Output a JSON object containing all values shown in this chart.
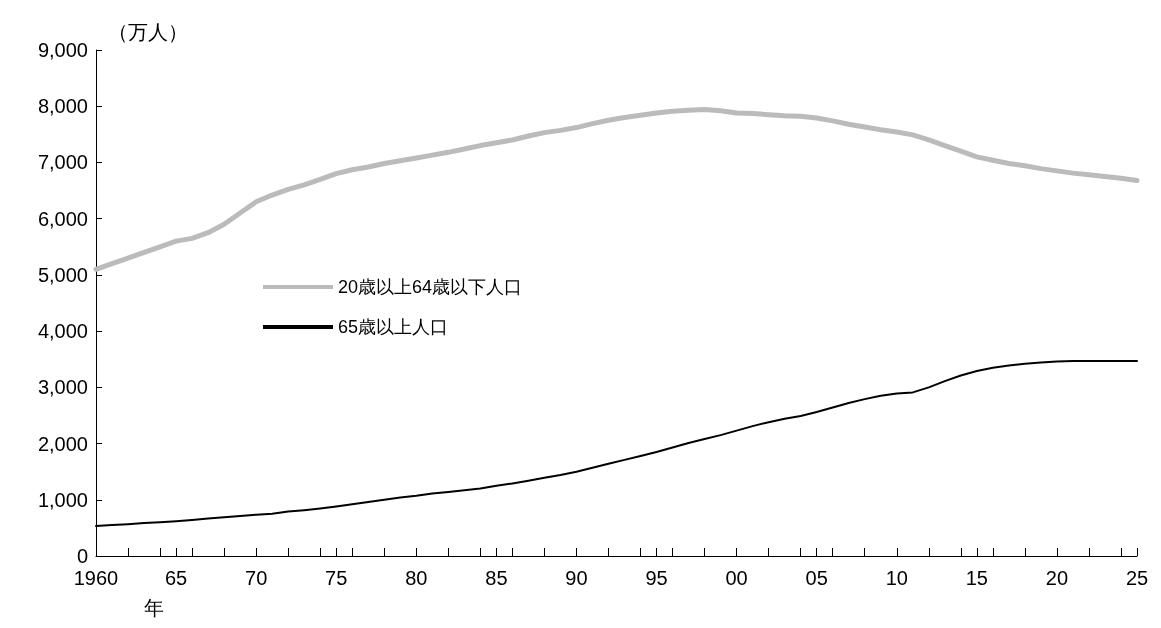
{
  "chart_data": {
    "type": "line",
    "xlabel": "年",
    "ylabel": "（万人）",
    "x": [
      1960,
      1961,
      1962,
      1963,
      1964,
      1965,
      1966,
      1967,
      1968,
      1969,
      1970,
      1971,
      1972,
      1973,
      1974,
      1975,
      1976,
      1977,
      1978,
      1979,
      1980,
      1981,
      1982,
      1983,
      1984,
      1985,
      1986,
      1987,
      1988,
      1989,
      1990,
      1991,
      1992,
      1993,
      1994,
      1995,
      1996,
      1997,
      1998,
      1999,
      2000,
      2001,
      2002,
      2003,
      2004,
      2005,
      2006,
      2007,
      2008,
      2009,
      2010,
      2011,
      2012,
      2013,
      2014,
      2015,
      2016,
      2017,
      2018,
      2019,
      2020,
      2021,
      2022,
      2023,
      2024,
      2025
    ],
    "series": [
      {
        "name": "20歳以上64歳以下人口",
        "color": "#bbbbbb",
        "values": [
          5100,
          5200,
          5300,
          5400,
          5500,
          5600,
          5650,
          5750,
          5900,
          6100,
          6300,
          6420,
          6520,
          6600,
          6700,
          6800,
          6870,
          6920,
          6980,
          7030,
          7080,
          7130,
          7180,
          7240,
          7300,
          7350,
          7400,
          7470,
          7530,
          7570,
          7620,
          7690,
          7750,
          7800,
          7840,
          7880,
          7910,
          7930,
          7940,
          7920,
          7880,
          7870,
          7850,
          7830,
          7820,
          7790,
          7740,
          7680,
          7630,
          7580,
          7540,
          7490,
          7400,
          7300,
          7200,
          7100,
          7040,
          6980,
          6940,
          6890,
          6850,
          6810,
          6780,
          6750,
          6720,
          6680
        ]
      },
      {
        "name": "65歳以上人口",
        "color": "#000000",
        "values": [
          535,
          550,
          565,
          585,
          600,
          620,
          640,
          665,
          690,
          710,
          735,
          750,
          790,
          815,
          845,
          880,
          920,
          960,
          1000,
          1040,
          1070,
          1110,
          1140,
          1170,
          1200,
          1250,
          1290,
          1340,
          1390,
          1440,
          1500,
          1570,
          1640,
          1710,
          1780,
          1850,
          1930,
          2010,
          2080,
          2150,
          2230,
          2310,
          2380,
          2440,
          2490,
          2560,
          2640,
          2720,
          2790,
          2850,
          2890,
          2910,
          3000,
          3110,
          3210,
          3290,
          3350,
          3390,
          3420,
          3440,
          3460,
          3470,
          3470,
          3470,
          3470,
          3470
        ]
      }
    ],
    "xlim": [
      1960,
      2025
    ],
    "xticks": [
      {
        "value": 1960,
        "label": "1960"
      },
      {
        "value": 1965,
        "label": "65"
      },
      {
        "value": 1970,
        "label": "70"
      },
      {
        "value": 1975,
        "label": "75"
      },
      {
        "value": 1980,
        "label": "80"
      },
      {
        "value": 1985,
        "label": "85"
      },
      {
        "value": 1990,
        "label": "90"
      },
      {
        "value": 1995,
        "label": "95"
      },
      {
        "value": 2000,
        "label": "00"
      },
      {
        "value": 2005,
        "label": "05"
      },
      {
        "value": 2010,
        "label": "10"
      },
      {
        "value": 2015,
        "label": "15"
      },
      {
        "value": 2020,
        "label": "20"
      },
      {
        "value": 2025,
        "label": "25"
      }
    ],
    "ylim": [
      0,
      9000
    ],
    "yticks": [
      0,
      {
        "value": 1000,
        "label": "1,000"
      },
      {
        "value": 2000,
        "label": "2,000"
      },
      {
        "value": 3000,
        "label": "3,000"
      },
      {
        "value": 4000,
        "label": "4,000"
      },
      {
        "value": 5000,
        "label": "5,000"
      },
      {
        "value": 6000,
        "label": "6,000"
      },
      {
        "value": 7000,
        "label": "7,000"
      },
      {
        "value": 8000,
        "label": "8,000"
      },
      {
        "value": 9000,
        "label": "9,000"
      }
    ],
    "grid": false,
    "legend": "left",
    "marker": "none",
    "line_style": "solid"
  }
}
